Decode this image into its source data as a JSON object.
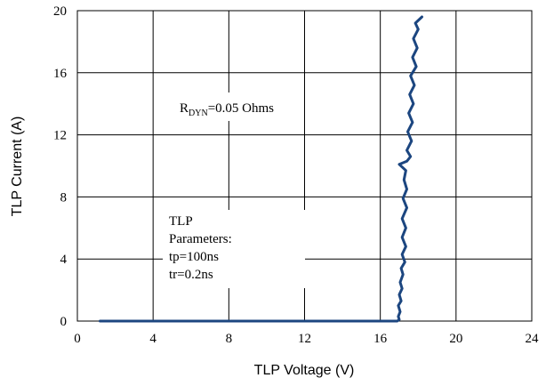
{
  "chart_data": {
    "type": "line",
    "xlabel": "TLP Voltage (V)",
    "ylabel": "TLP Current (A)",
    "xlim": [
      0,
      24
    ],
    "ylim": [
      0,
      20
    ],
    "x_ticks": [
      "0",
      "4",
      "8",
      "12",
      "16",
      "20",
      "24"
    ],
    "y_ticks": [
      "0",
      "4",
      "8",
      "12",
      "16",
      "20"
    ],
    "grid": true,
    "series_color": "#1c4680",
    "series": [
      {
        "points": [
          [
            1.2,
            0.0
          ],
          [
            16.9,
            0.0
          ],
          [
            17.0,
            0.1
          ],
          [
            16.95,
            0.3
          ],
          [
            17.05,
            0.6
          ],
          [
            16.95,
            1.0
          ],
          [
            17.1,
            1.3
          ],
          [
            17.0,
            1.7
          ],
          [
            17.15,
            2.1
          ],
          [
            17.05,
            2.5
          ],
          [
            17.2,
            3.0
          ],
          [
            17.1,
            3.4
          ],
          [
            17.3,
            3.8
          ],
          [
            17.15,
            4.3
          ],
          [
            17.35,
            4.8
          ],
          [
            17.15,
            5.4
          ],
          [
            17.35,
            6.0
          ],
          [
            17.15,
            6.6
          ],
          [
            17.4,
            7.3
          ],
          [
            17.2,
            7.9
          ],
          [
            17.4,
            8.5
          ],
          [
            17.25,
            9.1
          ],
          [
            17.35,
            9.7
          ],
          [
            17.0,
            10.1
          ],
          [
            17.4,
            10.3
          ],
          [
            17.6,
            10.6
          ],
          [
            17.4,
            11.0
          ],
          [
            17.65,
            11.6
          ],
          [
            17.45,
            12.2
          ],
          [
            17.7,
            12.8
          ],
          [
            17.5,
            13.4
          ],
          [
            17.75,
            14.0
          ],
          [
            17.55,
            14.6
          ],
          [
            17.8,
            15.2
          ],
          [
            17.6,
            15.8
          ],
          [
            17.9,
            16.4
          ],
          [
            17.7,
            17.0
          ],
          [
            17.95,
            17.6
          ],
          [
            17.75,
            18.2
          ],
          [
            18.0,
            18.8
          ],
          [
            17.85,
            19.2
          ],
          [
            18.2,
            19.6
          ]
        ]
      }
    ],
    "annotations": {
      "rdyn_main": "R",
      "rdyn_sub": "DYN",
      "rdyn_rest": "=0.05 Ohms",
      "params_lines": [
        "TLP",
        "Parameters:",
        "tp=100ns",
        "tr=0.2ns"
      ]
    }
  }
}
